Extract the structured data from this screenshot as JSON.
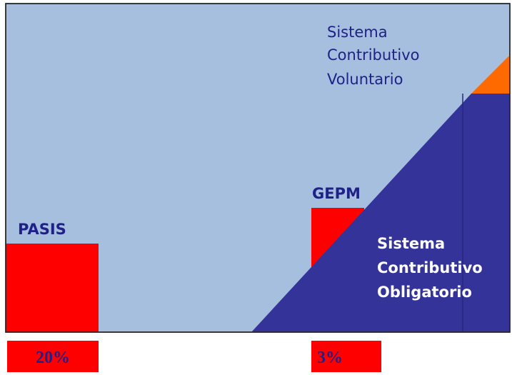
{
  "labels": {
    "voluntary": [
      "Sistema",
      "Contributivo",
      "Voluntario"
    ],
    "gepm": "GEPM",
    "pasis": "PASIS",
    "mandatory": [
      "Sistema",
      "Contributivo",
      "Obligatorio"
    ]
  },
  "boxes": {
    "pasis_share": "20%",
    "gepm_share": "3%"
  }
}
